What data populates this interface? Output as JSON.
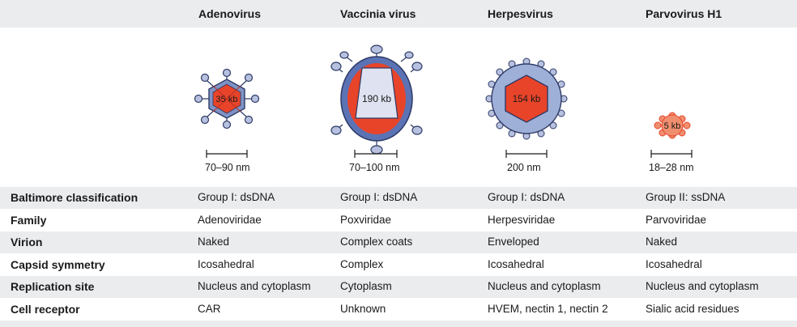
{
  "viruses": [
    {
      "name": "Adenovirus",
      "genome": "35 kb",
      "scale": "70–90 nm"
    },
    {
      "name": "Vaccinia virus",
      "genome": "190 kb",
      "scale": "70–100 nm"
    },
    {
      "name": "Herpesvirus",
      "genome": "154 kb",
      "scale": "200 nm"
    },
    {
      "name": "Parvovirus H1",
      "genome": "5 kb",
      "scale": "18–28 nm"
    }
  ],
  "rows": [
    {
      "label": "Baltimore classification",
      "values": [
        "Group I: dsDNA",
        "Group I: dsDNA",
        "Group I: dsDNA",
        "Group II: ssDNA"
      ]
    },
    {
      "label": "Family",
      "values": [
        "Adenoviridae",
        "Poxviridae",
        "Herpesviridae",
        "Parvoviridae"
      ]
    },
    {
      "label": "Virion",
      "values": [
        "Naked",
        "Complex coats",
        "Enveloped",
        "Naked"
      ]
    },
    {
      "label": "Capsid symmetry",
      "values": [
        "Icosahedral",
        "Complex",
        "Icosahedral",
        "Icosahedral"
      ]
    },
    {
      "label": "Replication site",
      "values": [
        "Nucleus and cytoplasm",
        "Cytoplasm",
        "Nucleus and cytoplasm",
        "Nucleus and cytoplasm"
      ]
    },
    {
      "label": "Cell receptor",
      "values": [
        "CAR",
        "Unknown",
        "HVEM, nectin 1, nectin 2",
        "Sialic acid residues"
      ]
    }
  ],
  "colors": {
    "band": "#eaecee",
    "capsid_blue": "#7f93c4",
    "envelope_light": "#b7c1df",
    "genome_red": "#e8442a",
    "genome_orange": "#f08f6e",
    "core_light": "#dfe3f1",
    "outline": "#2d3a66"
  }
}
